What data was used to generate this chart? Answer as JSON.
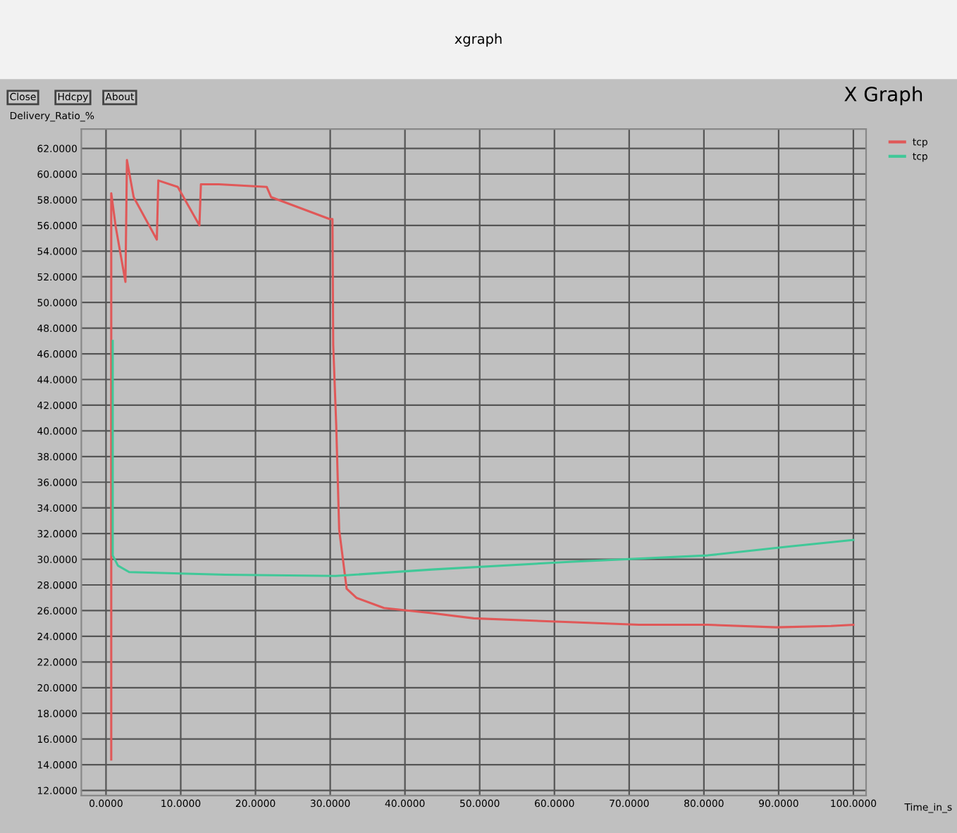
{
  "chart_data": {
    "type": "line",
    "title": "xgraph",
    "subtitle": "X Graph",
    "xlabel": "Time_in_s",
    "ylabel": "Delivery_Ratio_%",
    "annotations": [
      "Close",
      "Hdcpy",
      "About"
    ],
    "series": [
      {
        "name": "tcp",
        "color": "#e05858",
        "x": [
          0.7,
          0.7,
          1.3,
          2.6,
          2.8,
          3.7,
          6.8,
          7.0,
          9.6,
          12.5,
          12.7,
          15.1,
          21.5,
          22.1,
          29.9,
          30.3,
          30.4,
          30.8,
          31.2,
          32.2,
          33.5,
          37.2,
          43.6,
          49.2,
          62.1,
          71.3,
          80.5,
          89.7,
          97,
          100
        ],
        "values": [
          14.4,
          58.5,
          55.9,
          51.6,
          61.1,
          58.2,
          54.9,
          59.5,
          59,
          56,
          59.2,
          59.2,
          59,
          58.2,
          56.5,
          56.5,
          46.7,
          40.5,
          32.3,
          27.7,
          27,
          26.2,
          25.8,
          25.4,
          25.1,
          24.9,
          24.9,
          24.7,
          24.8,
          24.9
        ]
      },
      {
        "name": "tcp",
        "color": "#40c898",
        "x": [
          0.9,
          0.9,
          1.6,
          3.1,
          16,
          30.7,
          43.6,
          62,
          80.5,
          91.6,
          100
        ],
        "values": [
          47,
          30.3,
          29.5,
          29,
          28.8,
          28.7,
          29.2,
          29.8,
          30.3,
          31,
          31.5
        ]
      }
    ],
    "xlim": [
      -3.3,
      101.7
    ],
    "ylim": [
      11.6,
      63.5
    ],
    "xticks": [
      {
        "value": 0,
        "label": "0.0000"
      },
      {
        "value": 10,
        "label": "10.0000"
      },
      {
        "value": 20,
        "label": "20.0000"
      },
      {
        "value": 30,
        "label": "30.0000"
      },
      {
        "value": 40,
        "label": "40.0000"
      },
      {
        "value": 50,
        "label": "50.0000"
      },
      {
        "value": 60,
        "label": "60.0000"
      },
      {
        "value": 70,
        "label": "70.0000"
      },
      {
        "value": 80,
        "label": "80.0000"
      },
      {
        "value": 90,
        "label": "90.0000"
      },
      {
        "value": 100,
        "label": "100.0000"
      }
    ],
    "yticks": [
      {
        "value": 12,
        "label": "12.0000"
      },
      {
        "value": 14,
        "label": "14.0000"
      },
      {
        "value": 16,
        "label": "16.0000"
      },
      {
        "value": 18,
        "label": "18.0000"
      },
      {
        "value": 20,
        "label": "20.0000"
      },
      {
        "value": 22,
        "label": "22.0000"
      },
      {
        "value": 24,
        "label": "24.0000"
      },
      {
        "value": 26,
        "label": "26.0000"
      },
      {
        "value": 28,
        "label": "28.0000"
      },
      {
        "value": 30,
        "label": "30.0000"
      },
      {
        "value": 32,
        "label": "32.0000"
      },
      {
        "value": 34,
        "label": "34.0000"
      },
      {
        "value": 36,
        "label": "36.0000"
      },
      {
        "value": 38,
        "label": "38.0000"
      },
      {
        "value": 40,
        "label": "40.0000"
      },
      {
        "value": 42,
        "label": "42.0000"
      },
      {
        "value": 44,
        "label": "44.0000"
      },
      {
        "value": 46,
        "label": "46.0000"
      },
      {
        "value": 48,
        "label": "48.0000"
      },
      {
        "value": 50,
        "label": "50.0000"
      },
      {
        "value": 52,
        "label": "52.0000"
      },
      {
        "value": 54,
        "label": "54.0000"
      },
      {
        "value": 56,
        "label": "56.0000"
      },
      {
        "value": 58,
        "label": "58.0000"
      },
      {
        "value": 60,
        "label": "60.0000"
      },
      {
        "value": 62,
        "label": "62.0000"
      }
    ],
    "grid": true,
    "legend": "top right",
    "marker": "none",
    "line_style": "solid"
  }
}
